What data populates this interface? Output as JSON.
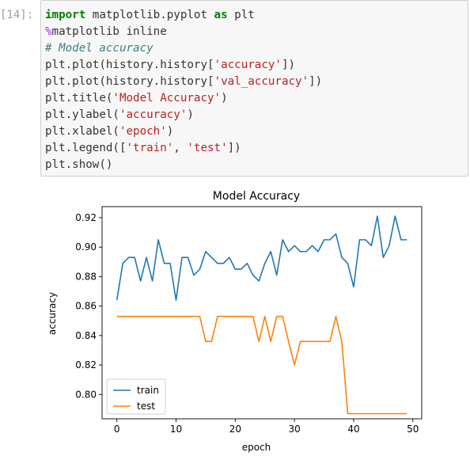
{
  "cell": {
    "prompt": "[14]:",
    "code_lines": [
      [
        {
          "t": "kw",
          "v": "import"
        },
        {
          "t": "pl",
          "v": " matplotlib.pyplot "
        },
        {
          "t": "kw",
          "v": "as"
        },
        {
          "t": "pl",
          "v": " plt"
        }
      ],
      [
        {
          "t": "mg",
          "v": "%"
        },
        {
          "t": "pl",
          "v": "matplotlib inline"
        }
      ],
      [
        {
          "t": "cm",
          "v": "# Model accuracy"
        }
      ],
      [
        {
          "t": "pl",
          "v": "plt.plot(history.history["
        },
        {
          "t": "st",
          "v": "'accuracy'"
        },
        {
          "t": "pl",
          "v": "])"
        }
      ],
      [
        {
          "t": "pl",
          "v": "plt.plot(history.history["
        },
        {
          "t": "st",
          "v": "'val_accuracy'"
        },
        {
          "t": "pl",
          "v": "])"
        }
      ],
      [
        {
          "t": "pl",
          "v": "plt.title("
        },
        {
          "t": "st",
          "v": "'Model Accuracy'"
        },
        {
          "t": "pl",
          "v": ")"
        }
      ],
      [
        {
          "t": "pl",
          "v": "plt.ylabel("
        },
        {
          "t": "st",
          "v": "'accuracy'"
        },
        {
          "t": "pl",
          "v": ")"
        }
      ],
      [
        {
          "t": "pl",
          "v": "plt.xlabel("
        },
        {
          "t": "st",
          "v": "'epoch'"
        },
        {
          "t": "pl",
          "v": ")"
        }
      ],
      [
        {
          "t": "pl",
          "v": "plt.legend(["
        },
        {
          "t": "st",
          "v": "'train'"
        },
        {
          "t": "pl",
          "v": ", "
        },
        {
          "t": "st",
          "v": "'test'"
        },
        {
          "t": "pl",
          "v": "])"
        }
      ],
      [
        {
          "t": "pl",
          "v": "plt.show()"
        }
      ]
    ]
  },
  "chart_data": {
    "type": "line",
    "title": "Model Accuracy",
    "xlabel": "epoch",
    "ylabel": "accuracy",
    "xlim": [
      -2.5,
      51.5
    ],
    "ylim": [
      0.7835,
      0.9275
    ],
    "xticks": [
      0,
      10,
      20,
      30,
      40,
      50
    ],
    "yticks": [
      0.8,
      0.82,
      0.84,
      0.86,
      0.88,
      0.9,
      0.92
    ],
    "ytick_labels": [
      "0.80",
      "0.82",
      "0.84",
      "0.86",
      "0.88",
      "0.90",
      "0.92"
    ],
    "grid": false,
    "legend_position": "lower left",
    "series": [
      {
        "name": "train",
        "color": "#1f77b4",
        "x": [
          0,
          1,
          2,
          3,
          4,
          5,
          6,
          7,
          8,
          9,
          10,
          11,
          12,
          13,
          14,
          15,
          16,
          17,
          18,
          19,
          20,
          21,
          22,
          23,
          24,
          25,
          26,
          27,
          28,
          29,
          30,
          31,
          32,
          33,
          34,
          35,
          36,
          37,
          38,
          39,
          40,
          41,
          42,
          43,
          44,
          45,
          46,
          47,
          48,
          49
        ],
        "values": [
          0.864,
          0.889,
          0.893,
          0.893,
          0.877,
          0.893,
          0.877,
          0.905,
          0.889,
          0.889,
          0.864,
          0.893,
          0.893,
          0.881,
          0.885,
          0.897,
          0.893,
          0.889,
          0.889,
          0.893,
          0.885,
          0.885,
          0.889,
          0.881,
          0.877,
          0.889,
          0.897,
          0.881,
          0.905,
          0.897,
          0.901,
          0.897,
          0.897,
          0.901,
          0.897,
          0.905,
          0.905,
          0.909,
          0.893,
          0.889,
          0.873,
          0.905,
          0.905,
          0.901,
          0.921,
          0.893,
          0.901,
          0.921,
          0.905,
          0.905
        ]
      },
      {
        "name": "test",
        "color": "#ff7f0e",
        "x": [
          0,
          1,
          2,
          3,
          4,
          5,
          6,
          7,
          8,
          9,
          10,
          11,
          12,
          13,
          14,
          15,
          16,
          17,
          18,
          19,
          20,
          21,
          22,
          23,
          24,
          25,
          26,
          27,
          28,
          29,
          30,
          31,
          32,
          33,
          34,
          35,
          36,
          37,
          38,
          39,
          40,
          41,
          42,
          43,
          44,
          45,
          46,
          47,
          48,
          49
        ],
        "values": [
          0.853,
          0.853,
          0.853,
          0.853,
          0.853,
          0.853,
          0.853,
          0.853,
          0.853,
          0.853,
          0.853,
          0.853,
          0.853,
          0.853,
          0.853,
          0.836,
          0.836,
          0.853,
          0.853,
          0.853,
          0.853,
          0.853,
          0.853,
          0.853,
          0.836,
          0.853,
          0.836,
          0.853,
          0.853,
          0.836,
          0.82,
          0.836,
          0.836,
          0.836,
          0.836,
          0.836,
          0.836,
          0.853,
          0.836,
          0.787,
          0.787,
          0.787,
          0.787,
          0.787,
          0.787,
          0.787,
          0.787,
          0.787,
          0.787,
          0.787
        ]
      }
    ]
  }
}
